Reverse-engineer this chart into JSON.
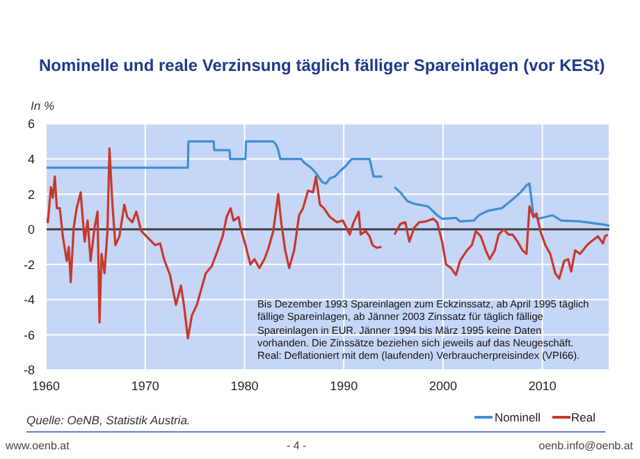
{
  "chart_data": {
    "type": "line",
    "title": "Nominelle und reale Verzinsung täglich fälliger Spareinlagen (vor KESt)",
    "ylabel": "In %",
    "annotations": [
      "Bis Dezember 1993 Spareinlagen zum Eckzinssatz, ab April 1995 täglich fällige Spareinlagen, ab Jänner 2003 Zinssatz für täglich fällige Spareinlagen in EUR. Jänner 1994 bis März 1995 keine Daten vorhanden. Die Zinssätze beziehen sich jeweils auf das Neugeschäft. Real: Deflationiert mit dem (laufenden) Verbraucherpreisindex (VPI66).",
      "Quelle: OeNB, Statistik Austria.",
      "www.oenb.at",
      "- 4 -",
      "oenb.info@oenb.at"
    ],
    "xlim": [
      1960,
      2016.75
    ],
    "xticks": [
      1960,
      1970,
      1980,
      1990,
      2000,
      2010
    ],
    "ylim": [
      -8,
      6
    ],
    "yticks": [
      -8,
      -6,
      -4,
      -2,
      0,
      2,
      4,
      6
    ],
    "grid": true,
    "legend": "bottom right",
    "line_style": "solid",
    "marker": "none",
    "ref_lines": [
      {
        "axis": "y",
        "value": 0,
        "color": "#404040"
      }
    ],
    "series": [
      {
        "name": "Nominell",
        "color": "#3f8fd6",
        "x": [
          1960,
          1974.3,
          1974.35,
          1976.9,
          1976.95,
          1978.5,
          1978.55,
          1980.1,
          1980.15,
          1982.9,
          1983.2,
          1983.4,
          1983.6,
          1985.7,
          1986,
          1986.7,
          1987.2,
          1987.8,
          1988.2,
          1988.6,
          1989.1,
          1989.6,
          1990.2,
          1990.8,
          1992.6,
          1993,
          1993.9,
          1994.5,
          1995.1,
          1995.7,
          1996.4,
          1997.1,
          1998.5,
          1999.4,
          1999.9,
          2001.3,
          2001.7,
          2003.1,
          2003.6,
          2004.5,
          2005.9,
          2006.8,
          2007.8,
          2008.4,
          2008.7,
          2009.1,
          2009.6,
          2011,
          2011.9,
          2013.8,
          2016.3,
          2016.75
        ],
        "values": [
          3.5,
          3.5,
          5,
          5,
          4.5,
          4.5,
          4,
          4,
          5,
          5,
          4.8,
          4.5,
          4,
          4,
          3.8,
          3.5,
          3.2,
          2.7,
          2.6,
          2.9,
          3,
          3.3,
          3.6,
          4,
          4,
          3,
          3,
          null,
          2.4,
          2.1,
          1.6,
          1.45,
          1.3,
          0.8,
          0.6,
          0.65,
          0.45,
          0.5,
          0.8,
          1.05,
          1.2,
          1.6,
          2.1,
          2.5,
          2.6,
          0.8,
          0.6,
          0.8,
          0.5,
          0.45,
          0.26,
          0.2
        ]
      },
      {
        "name": "Real",
        "color": "#c8382c",
        "x": [
          1960,
          1960.2,
          1960.5,
          1960.7,
          1960.9,
          1961.1,
          1961.4,
          1961.7,
          1962.1,
          1962.3,
          1962.5,
          1962.8,
          1963.1,
          1963.5,
          1963.9,
          1964.2,
          1964.5,
          1964.9,
          1965.2,
          1965.4,
          1965.6,
          1965.9,
          1966.2,
          1966.4,
          1966.7,
          1967,
          1967.4,
          1967.9,
          1968.2,
          1968.7,
          1969.1,
          1969.6,
          1970.3,
          1971,
          1971.5,
          1971.9,
          1972.5,
          1973.1,
          1973.6,
          1973.9,
          1974.3,
          1974.7,
          1975.2,
          1975.7,
          1976.1,
          1976.7,
          1977.3,
          1977.8,
          1978.2,
          1978.6,
          1978.9,
          1979.4,
          1979.6,
          1980.1,
          1980.6,
          1981,
          1981.5,
          1982,
          1982.4,
          1982.9,
          1983.4,
          1983.7,
          1984.1,
          1984.5,
          1985,
          1985.5,
          1985.9,
          1986.4,
          1986.9,
          1987.2,
          1987.6,
          1988,
          1988.6,
          1989.3,
          1989.9,
          1990.6,
          1991,
          1991.5,
          1991.7,
          1992.2,
          1992.6,
          1992.9,
          1993.3,
          1993.8,
          1994.5,
          1995.1,
          1995.7,
          1996.2,
          1996.6,
          1997.1,
          1997.6,
          1998.3,
          1999,
          1999.4,
          1999.9,
          2000.3,
          2000.8,
          2001.3,
          2001.7,
          2002.4,
          2002.9,
          2003.3,
          2003.8,
          2004.3,
          2004.7,
          2005.2,
          2005.6,
          2006.1,
          2006.6,
          2007,
          2007.5,
          2008,
          2008.4,
          2008.7,
          2009.1,
          2009.4,
          2009.8,
          2010.3,
          2010.8,
          2011.3,
          2011.7,
          2012.2,
          2012.6,
          2012.9,
          2013.3,
          2013.8,
          2014.5,
          2014.9,
          2015.6,
          2016.1,
          2016.3,
          2016.6
        ],
        "values": [
          0.6,
          0.4,
          2.4,
          1.8,
          3,
          1.2,
          1.2,
          -0.4,
          -1.8,
          -1,
          -3,
          0.1,
          1.2,
          2.1,
          -0.7,
          0.5,
          -1.8,
          0.1,
          1,
          -5.3,
          -1.4,
          -2.5,
          -0.1,
          4.6,
          1.4,
          -0.9,
          -0.4,
          1.4,
          0.7,
          0.4,
          1,
          -0.1,
          -0.5,
          -0.9,
          -0.8,
          -1.7,
          -2.6,
          -4.3,
          -3.2,
          -4.3,
          -6.2,
          -4.9,
          -4.3,
          -3.3,
          -2.5,
          -2.1,
          -1.2,
          -0.4,
          0.7,
          1.2,
          0.5,
          0.7,
          0.1,
          -0.9,
          -2,
          -1.7,
          -2.2,
          -1.7,
          -1.1,
          -0.1,
          2,
          0.4,
          -1.2,
          -2.2,
          -1.2,
          0.8,
          1.2,
          2.2,
          2.1,
          3,
          1.4,
          1.2,
          0.7,
          0.4,
          0.5,
          -0.3,
          0.4,
          1,
          -0.3,
          -0.1,
          -0.4,
          -0.9,
          -1.05,
          -1,
          null,
          -0.3,
          0.3,
          0.4,
          -0.7,
          0.1,
          0.4,
          0.45,
          0.6,
          0.4,
          -0.7,
          -2,
          -2.2,
          -2.6,
          -1.8,
          -1.2,
          -0.9,
          -0.1,
          -0.4,
          -1.2,
          -1.7,
          -1.2,
          -0.3,
          0,
          -0.3,
          -0.3,
          -0.7,
          -1.2,
          -1.4,
          1.3,
          0.7,
          0.9,
          -0.1,
          -0.9,
          -1.4,
          -2.5,
          -2.8,
          -1.8,
          -1.7,
          -2.4,
          -1.2,
          -1.4,
          -0.9,
          -0.7,
          -0.4,
          -0.8,
          -0.4,
          -0.3
        ]
      }
    ]
  }
}
